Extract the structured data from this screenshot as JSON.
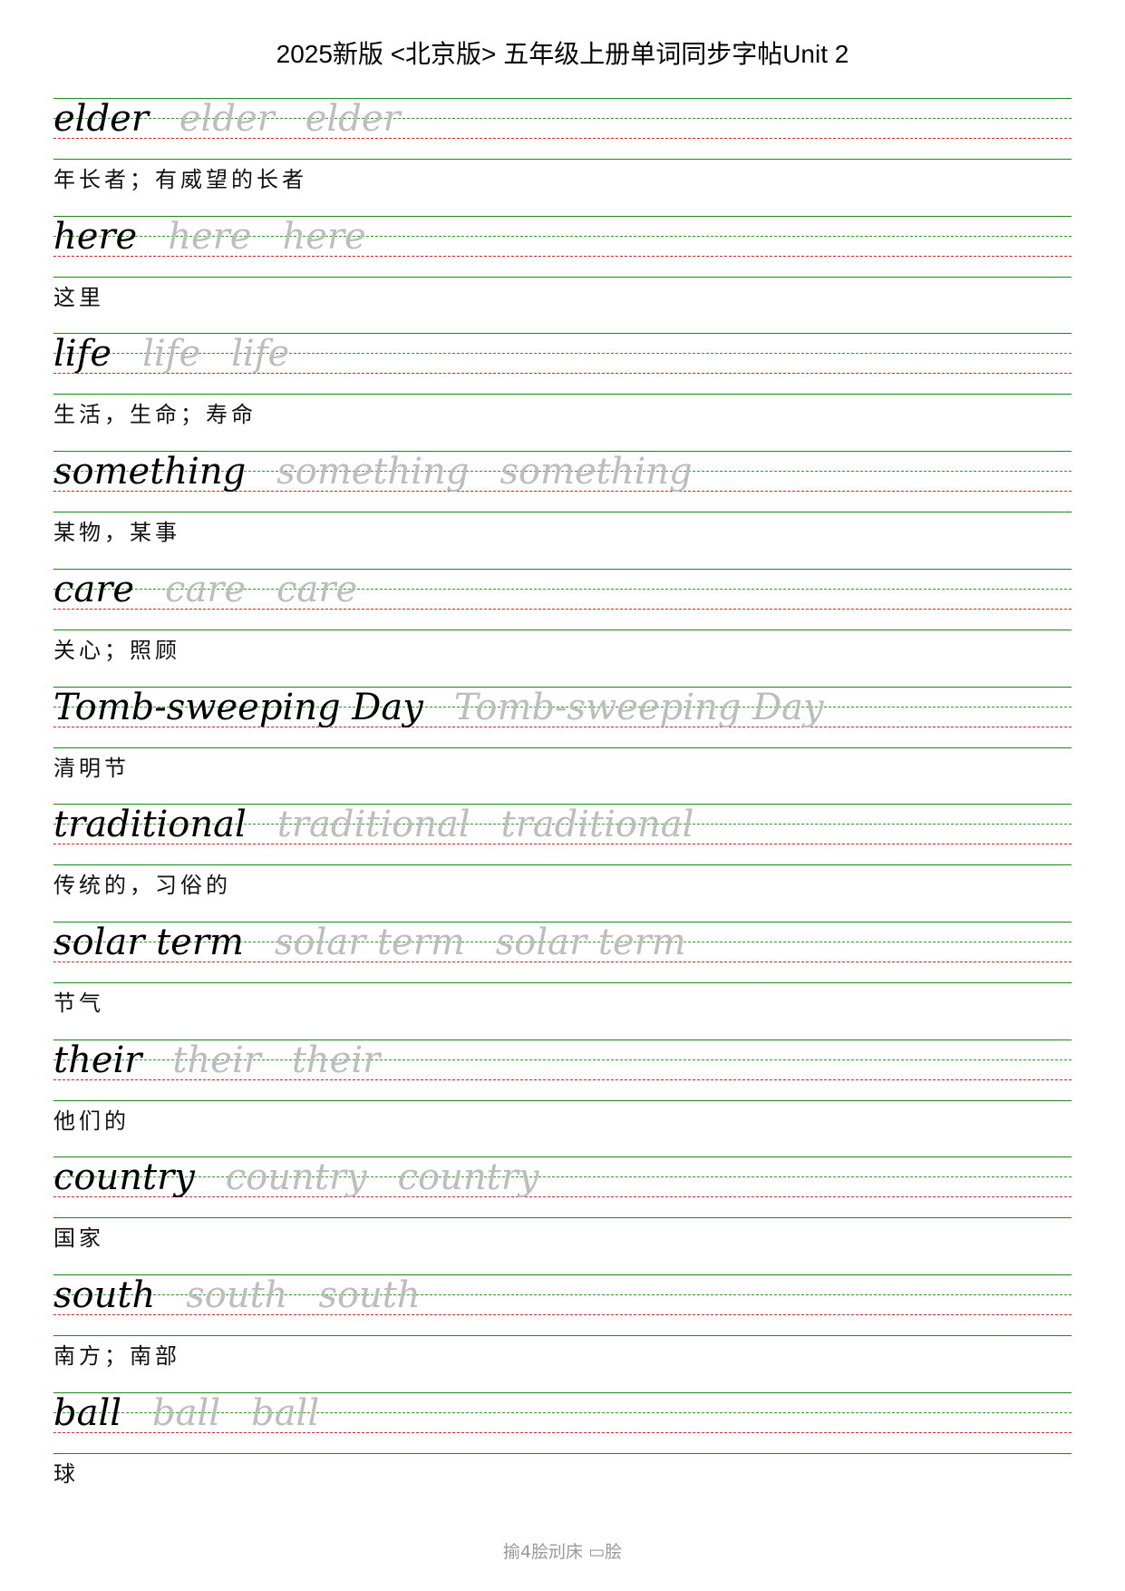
{
  "title": "2025新版 <北京版> 五年级上册单词同步字帖Unit 2",
  "colors": {
    "solid_line": "#1a8a1a",
    "midline": "#2aa02a",
    "baseline": "#e82020",
    "trace_text": "#bdbdbd"
  },
  "entries": [
    {
      "word": "elder",
      "meaning": "年长者；有威望的长者"
    },
    {
      "word": "here",
      "meaning": "这里"
    },
    {
      "word": "life",
      "meaning": "生活，生命；寿命"
    },
    {
      "word": "something",
      "meaning": "某物，某事"
    },
    {
      "word": "care",
      "meaning": "关心；照顾"
    },
    {
      "word": "Tomb-sweeping Day",
      "meaning": "清明节"
    },
    {
      "word": "traditional",
      "meaning": "传统的，习俗的"
    },
    {
      "word": "solar term",
      "meaning": "节气"
    },
    {
      "word": "their",
      "meaning": "他们的"
    },
    {
      "word": "country",
      "meaning": "国家"
    },
    {
      "word": "south",
      "meaning": "南方；南部"
    },
    {
      "word": "ball",
      "meaning": "球"
    }
  ],
  "footer": "揄4脍刓床 ▭脍"
}
